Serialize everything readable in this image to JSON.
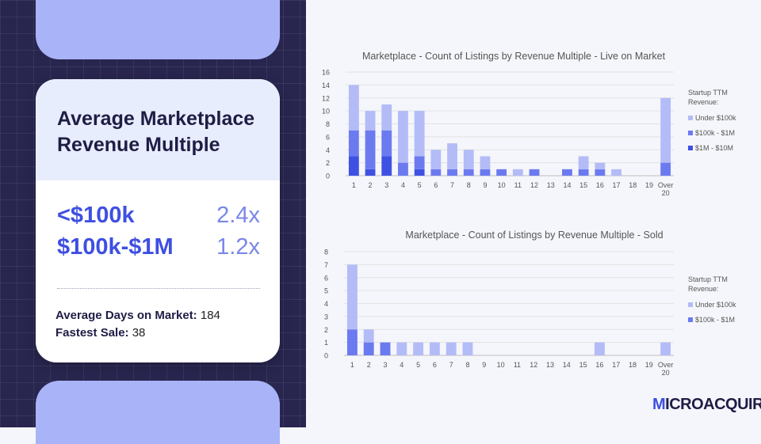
{
  "card": {
    "title": "Average Marketplace Revenue Multiple",
    "multiples": [
      {
        "label": "<$100k",
        "value": "2.4x"
      },
      {
        "label": "$100k-$1M",
        "value": "1.2x"
      }
    ],
    "days_label": "Average Days on Market:",
    "days_value": "184",
    "fastest_label": "Fastest Sale:",
    "fastest_value": "38"
  },
  "logo": {
    "first": "M",
    "rest": "ICROACQUIRE"
  },
  "colors": {
    "panel_bg": "#28264f",
    "accent": "#3e4fe2",
    "light_accent": "#a9b4f8",
    "under_100k": "#b3bcf7",
    "100k_1m": "#6c7af0",
    "1m_10m": "#3f51e3"
  },
  "chart_data": [
    {
      "type": "bar",
      "stacked": true,
      "title": "Marketplace  -  Count of Listings by Revenue Multiple - Live on Market",
      "categories": [
        "1",
        "2",
        "3",
        "4",
        "5",
        "6",
        "7",
        "8",
        "9",
        "10",
        "11",
        "12",
        "13",
        "14",
        "15",
        "16",
        "17",
        "18",
        "19",
        "Over 20"
      ],
      "ylim": [
        0,
        16
      ],
      "yticks": [
        0,
        2,
        4,
        6,
        8,
        10,
        12,
        14,
        16
      ],
      "legend_title": "Startup TTM Revenue:",
      "legend_position": "right",
      "series": [
        {
          "name": "$1M - $10M",
          "color": "#3f51e3",
          "values": [
            3,
            1,
            3,
            0,
            1,
            0,
            0,
            0,
            0,
            0,
            0,
            0,
            0,
            0,
            0,
            0,
            0,
            0,
            0,
            0
          ]
        },
        {
          "name": "$100k - $1M",
          "color": "#6c7af0",
          "values": [
            4,
            6,
            4,
            2,
            2,
            1,
            1,
            1,
            1,
            1,
            0,
            1,
            0,
            1,
            1,
            1,
            0,
            0,
            0,
            2
          ]
        },
        {
          "name": "Under $100k",
          "color": "#b3bcf7",
          "values": [
            7,
            3,
            4,
            8,
            7,
            3,
            4,
            3,
            2,
            0,
            1,
            0,
            0,
            0,
            2,
            1,
            1,
            0,
            0,
            10
          ]
        }
      ]
    },
    {
      "type": "bar",
      "stacked": true,
      "title": "Marketplace  -  Count of Listings by Revenue Multiple - Sold",
      "categories": [
        "1",
        "2",
        "3",
        "4",
        "5",
        "6",
        "7",
        "8",
        "9",
        "10",
        "11",
        "12",
        "13",
        "14",
        "15",
        "16",
        "17",
        "18",
        "19",
        "Over 20"
      ],
      "ylim": [
        0,
        8
      ],
      "yticks": [
        0,
        1,
        2,
        3,
        4,
        5,
        6,
        7,
        8
      ],
      "legend_title": "Startup TTM Revenue:",
      "legend_position": "right",
      "series": [
        {
          "name": "$100k - $1M",
          "color": "#6c7af0",
          "values": [
            2,
            1,
            1,
            0,
            0,
            0,
            0,
            0,
            0,
            0,
            0,
            0,
            0,
            0,
            0,
            0,
            0,
            0,
            0,
            0
          ]
        },
        {
          "name": "Under $100k",
          "color": "#b3bcf7",
          "values": [
            5,
            1,
            0,
            1,
            1,
            1,
            1,
            1,
            0,
            0,
            0,
            0,
            0,
            0,
            0,
            1,
            0,
            0,
            0,
            1
          ]
        }
      ]
    }
  ]
}
